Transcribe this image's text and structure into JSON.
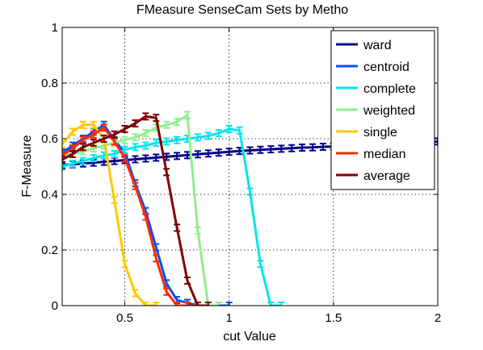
{
  "chart_data": {
    "type": "line",
    "title": "FMeasure SenseCam Sets by Metho",
    "xlabel": "cut Value",
    "ylabel": "F-Measure",
    "xlim": [
      0.2,
      2.0
    ],
    "ylim": [
      0,
      1
    ],
    "x_ticks": [
      0.5,
      1,
      1.5,
      2
    ],
    "x_tick_labels": [
      "0.5",
      "1",
      "1.5",
      "2"
    ],
    "y_ticks": [
      0,
      0.2,
      0.4,
      0.6,
      0.8,
      1
    ],
    "y_tick_labels": [
      "0",
      "0.2",
      "0.4",
      "0.6",
      "0.8",
      "1"
    ],
    "grid": true,
    "legend_position": "top-right",
    "series": [
      {
        "name": "ward",
        "color": "#00008b",
        "x": [
          0.2,
          0.25,
          0.3,
          0.35,
          0.4,
          0.45,
          0.5,
          0.55,
          0.6,
          0.65,
          0.7,
          0.75,
          0.8,
          0.85,
          0.9,
          0.95,
          1.0,
          1.05,
          1.1,
          1.15,
          1.2,
          1.25,
          1.3,
          1.35,
          1.4,
          1.45,
          1.5,
          1.55,
          1.6,
          1.65,
          1.7,
          1.75,
          1.8,
          1.85,
          1.9,
          1.95,
          2.0
        ],
        "y": [
          0.505,
          0.508,
          0.511,
          0.514,
          0.517,
          0.52,
          0.523,
          0.526,
          0.529,
          0.532,
          0.535,
          0.538,
          0.541,
          0.544,
          0.547,
          0.55,
          0.553,
          0.556,
          0.558,
          0.56,
          0.562,
          0.564,
          0.566,
          0.568,
          0.569,
          0.571,
          0.572,
          0.574,
          0.575,
          0.577,
          0.578,
          0.58,
          0.581,
          0.583,
          0.585,
          0.587,
          0.59
        ]
      },
      {
        "name": "centroid",
        "color": "#0050ff",
        "x": [
          0.2,
          0.25,
          0.3,
          0.35,
          0.4,
          0.45,
          0.5,
          0.55,
          0.6,
          0.65,
          0.7,
          0.75,
          0.8,
          0.85,
          0.9,
          0.95,
          1.0
        ],
        "y": [
          0.55,
          0.575,
          0.6,
          0.625,
          0.65,
          0.595,
          0.55,
          0.44,
          0.34,
          0.21,
          0.08,
          0.02,
          0.01,
          0.0,
          0.0,
          0.0,
          0.0
        ]
      },
      {
        "name": "complete",
        "color": "#00e5ee",
        "x": [
          0.2,
          0.25,
          0.3,
          0.35,
          0.4,
          0.45,
          0.5,
          0.55,
          0.6,
          0.65,
          0.7,
          0.75,
          0.8,
          0.85,
          0.9,
          0.95,
          1.0,
          1.05,
          1.1,
          1.15,
          1.2,
          1.25
        ],
        "y": [
          0.5,
          0.51,
          0.52,
          0.53,
          0.54,
          0.545,
          0.56,
          0.57,
          0.575,
          0.585,
          0.59,
          0.595,
          0.6,
          0.605,
          0.61,
          0.62,
          0.635,
          0.63,
          0.41,
          0.15,
          0.0,
          0.0
        ]
      },
      {
        "name": "weighted",
        "color": "#90ee90",
        "x": [
          0.2,
          0.25,
          0.3,
          0.35,
          0.4,
          0.45,
          0.5,
          0.55,
          0.6,
          0.65,
          0.7,
          0.75,
          0.8,
          0.85,
          0.9,
          0.95
        ],
        "y": [
          0.54,
          0.545,
          0.555,
          0.565,
          0.575,
          0.585,
          0.595,
          0.605,
          0.62,
          0.64,
          0.65,
          0.66,
          0.685,
          0.27,
          0.0,
          0.0
        ]
      },
      {
        "name": "single",
        "color": "#ffc800",
        "x": [
          0.2,
          0.25,
          0.3,
          0.35,
          0.4,
          0.45,
          0.5,
          0.55,
          0.6,
          0.65
        ],
        "y": [
          0.58,
          0.625,
          0.65,
          0.65,
          0.6,
          0.38,
          0.15,
          0.045,
          0.0,
          0.0
        ]
      },
      {
        "name": "median",
        "color": "#ff2a00",
        "x": [
          0.2,
          0.25,
          0.3,
          0.35,
          0.4,
          0.45,
          0.5,
          0.55,
          0.6,
          0.65,
          0.7,
          0.75,
          0.8,
          0.85
        ],
        "y": [
          0.54,
          0.565,
          0.595,
          0.615,
          0.64,
          0.59,
          0.53,
          0.43,
          0.32,
          0.17,
          0.05,
          0.0,
          0.0,
          0.0
        ]
      },
      {
        "name": "average",
        "color": "#800000",
        "x": [
          0.2,
          0.25,
          0.3,
          0.35,
          0.4,
          0.45,
          0.5,
          0.55,
          0.6,
          0.65,
          0.7,
          0.75,
          0.8,
          0.85,
          0.9
        ],
        "y": [
          0.525,
          0.545,
          0.57,
          0.585,
          0.6,
          0.615,
          0.635,
          0.655,
          0.68,
          0.675,
          0.48,
          0.28,
          0.09,
          0.0,
          0.0
        ]
      }
    ]
  }
}
